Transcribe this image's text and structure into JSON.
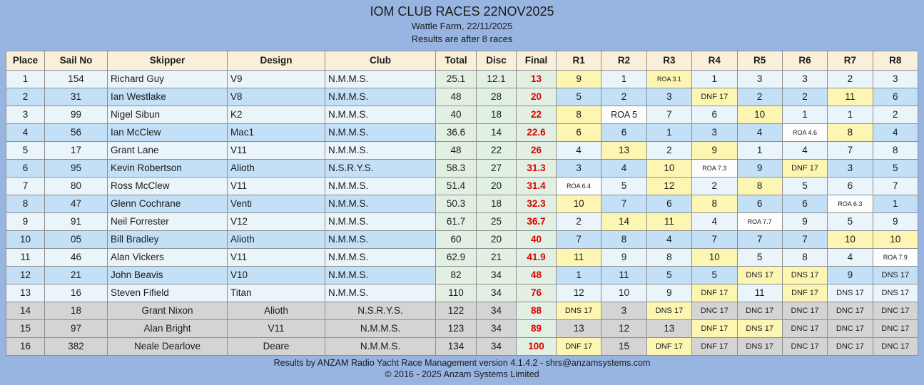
{
  "header": {
    "title": "IOM CLUB RACES 22NOV2025",
    "venue": "Wattle Farm, 22/11/2025",
    "note": "Results are after 8 races"
  },
  "colors": {
    "page_bg": "#98B5E2",
    "header_bg": "#FAEFD8",
    "row_light": "#EAF4FB",
    "row_blue": "#C3E0F6",
    "row_gray": "#D4D4D4",
    "discard_yellow": "#FCF6B2",
    "totals_green": "#E2F0E3",
    "roa_white": "#FDFDFE",
    "final_red": "#DE0000",
    "border_gray": "#8E8E8E",
    "text": "#1B1B1B"
  },
  "table": {
    "columns": [
      {
        "key": "place",
        "label": "Place"
      },
      {
        "key": "sail_no",
        "label": "Sail No"
      },
      {
        "key": "skipper",
        "label": "Skipper"
      },
      {
        "key": "design",
        "label": "Design"
      },
      {
        "key": "club",
        "label": "Club"
      },
      {
        "key": "total",
        "label": "Total"
      },
      {
        "key": "disc",
        "label": "Disc"
      },
      {
        "key": "final",
        "label": "Final"
      },
      {
        "key": "r1",
        "label": "R1"
      },
      {
        "key": "r2",
        "label": "R2"
      },
      {
        "key": "r3",
        "label": "R3"
      },
      {
        "key": "r4",
        "label": "R4"
      },
      {
        "key": "r5",
        "label": "R5"
      },
      {
        "key": "r6",
        "label": "R6"
      },
      {
        "key": "r7",
        "label": "R7"
      },
      {
        "key": "r8",
        "label": "R8"
      }
    ],
    "rows": [
      {
        "place": "1",
        "sail_no": "154",
        "skipper": "Richard Guy",
        "design": "V9",
        "club": "N.M.M.S.",
        "total": "25.1",
        "disc": "12.1",
        "final": "13",
        "stripe": "light",
        "races": [
          {
            "value": "9",
            "discard": true
          },
          {
            "value": "1"
          },
          {
            "value": "ROA 3.1",
            "discard": true,
            "type": "roa"
          },
          {
            "value": "1"
          },
          {
            "value": "3"
          },
          {
            "value": "3"
          },
          {
            "value": "2"
          },
          {
            "value": "3"
          }
        ]
      },
      {
        "place": "2",
        "sail_no": "31",
        "skipper": "Ian Westlake",
        "design": "V8",
        "club": "N.M.M.S.",
        "total": "48",
        "disc": "28",
        "final": "20",
        "stripe": "blue",
        "races": [
          {
            "value": "5"
          },
          {
            "value": "2"
          },
          {
            "value": "3"
          },
          {
            "value": "DNF 17",
            "discard": true,
            "type": "code"
          },
          {
            "value": "2"
          },
          {
            "value": "2"
          },
          {
            "value": "11",
            "discard": true
          },
          {
            "value": "6"
          }
        ]
      },
      {
        "place": "3",
        "sail_no": "99",
        "skipper": "Nigel Sibun",
        "design": "K2",
        "club": "N.M.M.S.",
        "total": "40",
        "disc": "18",
        "final": "22",
        "stripe": "light",
        "races": [
          {
            "value": "8",
            "discard": true
          },
          {
            "value": "ROA 5",
            "type": "roa"
          },
          {
            "value": "7"
          },
          {
            "value": "6"
          },
          {
            "value": "10",
            "discard": true
          },
          {
            "value": "1"
          },
          {
            "value": "1"
          },
          {
            "value": "2"
          }
        ]
      },
      {
        "place": "4",
        "sail_no": "56",
        "skipper": "Ian McClew",
        "design": "Mac1",
        "club": "N.M.M.S.",
        "total": "36.6",
        "disc": "14",
        "final": "22.6",
        "stripe": "blue",
        "races": [
          {
            "value": "6",
            "discard": true
          },
          {
            "value": "6"
          },
          {
            "value": "1"
          },
          {
            "value": "3"
          },
          {
            "value": "4"
          },
          {
            "value": "ROA 4.6",
            "type": "roa"
          },
          {
            "value": "8",
            "discard": true
          },
          {
            "value": "4"
          }
        ]
      },
      {
        "place": "5",
        "sail_no": "17",
        "skipper": "Grant Lane",
        "design": "V11",
        "club": "N.M.M.S.",
        "total": "48",
        "disc": "22",
        "final": "26",
        "stripe": "light",
        "races": [
          {
            "value": "4"
          },
          {
            "value": "13",
            "discard": true
          },
          {
            "value": "2"
          },
          {
            "value": "9",
            "discard": true
          },
          {
            "value": "1"
          },
          {
            "value": "4"
          },
          {
            "value": "7"
          },
          {
            "value": "8"
          }
        ]
      },
      {
        "place": "6",
        "sail_no": "95",
        "skipper": "Kevin Robertson",
        "design": "Alioth",
        "club": "N.S.R.Y.S.",
        "total": "58.3",
        "disc": "27",
        "final": "31.3",
        "stripe": "blue",
        "races": [
          {
            "value": "3"
          },
          {
            "value": "4"
          },
          {
            "value": "10",
            "discard": true
          },
          {
            "value": "ROA 7.3",
            "type": "roa"
          },
          {
            "value": "9"
          },
          {
            "value": "DNF 17",
            "discard": true,
            "type": "code"
          },
          {
            "value": "3"
          },
          {
            "value": "5"
          }
        ]
      },
      {
        "place": "7",
        "sail_no": "80",
        "skipper": "Ross McClew",
        "design": "V11",
        "club": "N.M.M.S.",
        "total": "51.4",
        "disc": "20",
        "final": "31.4",
        "stripe": "light",
        "races": [
          {
            "value": "ROA 6.4",
            "type": "roa"
          },
          {
            "value": "5"
          },
          {
            "value": "12",
            "discard": true
          },
          {
            "value": "2"
          },
          {
            "value": "8",
            "discard": true
          },
          {
            "value": "5"
          },
          {
            "value": "6"
          },
          {
            "value": "7"
          }
        ]
      },
      {
        "place": "8",
        "sail_no": "47",
        "skipper": "Glenn Cochrane",
        "design": "Venti",
        "club": "N.M.M.S.",
        "total": "50.3",
        "disc": "18",
        "final": "32.3",
        "stripe": "blue",
        "races": [
          {
            "value": "10",
            "discard": true
          },
          {
            "value": "7"
          },
          {
            "value": "6"
          },
          {
            "value": "8",
            "discard": true
          },
          {
            "value": "6"
          },
          {
            "value": "6"
          },
          {
            "value": "ROA 6.3",
            "type": "roa"
          },
          {
            "value": "1"
          }
        ]
      },
      {
        "place": "9",
        "sail_no": "91",
        "skipper": "Neil Forrester",
        "design": "V12",
        "club": "N.M.M.S.",
        "total": "61.7",
        "disc": "25",
        "final": "36.7",
        "stripe": "light",
        "races": [
          {
            "value": "2"
          },
          {
            "value": "14",
            "discard": true
          },
          {
            "value": "11",
            "discard": true
          },
          {
            "value": "4"
          },
          {
            "value": "ROA 7.7",
            "type": "roa"
          },
          {
            "value": "9"
          },
          {
            "value": "5"
          },
          {
            "value": "9"
          }
        ]
      },
      {
        "place": "10",
        "sail_no": "05",
        "skipper": "Bill Bradley",
        "design": "Alioth",
        "club": "N.M.M.S.",
        "total": "60",
        "disc": "20",
        "final": "40",
        "stripe": "blue",
        "races": [
          {
            "value": "7"
          },
          {
            "value": "8"
          },
          {
            "value": "4"
          },
          {
            "value": "7"
          },
          {
            "value": "7"
          },
          {
            "value": "7"
          },
          {
            "value": "10",
            "discard": true
          },
          {
            "value": "10",
            "discard": true
          }
        ]
      },
      {
        "place": "11",
        "sail_no": "46",
        "skipper": "Alan Vickers",
        "design": "V11",
        "club": "N.M.M.S.",
        "total": "62.9",
        "disc": "21",
        "final": "41.9",
        "stripe": "light",
        "races": [
          {
            "value": "11",
            "discard": true
          },
          {
            "value": "9"
          },
          {
            "value": "8"
          },
          {
            "value": "10",
            "discard": true
          },
          {
            "value": "5"
          },
          {
            "value": "8"
          },
          {
            "value": "4"
          },
          {
            "value": "ROA 7.9",
            "type": "roa"
          }
        ]
      },
      {
        "place": "12",
        "sail_no": "21",
        "skipper": "John Beavis",
        "design": "V10",
        "club": "N.M.M.S.",
        "total": "82",
        "disc": "34",
        "final": "48",
        "stripe": "blue",
        "races": [
          {
            "value": "1"
          },
          {
            "value": "11"
          },
          {
            "value": "5"
          },
          {
            "value": "5"
          },
          {
            "value": "DNS 17",
            "discard": true,
            "type": "code"
          },
          {
            "value": "DNS 17",
            "discard": true,
            "type": "code"
          },
          {
            "value": "9"
          },
          {
            "value": "DNS 17",
            "type": "code"
          }
        ]
      },
      {
        "place": "13",
        "sail_no": "16",
        "skipper": "Steven Fifield",
        "design": "Titan",
        "club": "N.M.M.S.",
        "total": "110",
        "disc": "34",
        "final": "76",
        "stripe": "light",
        "races": [
          {
            "value": "12"
          },
          {
            "value": "10"
          },
          {
            "value": "9"
          },
          {
            "value": "DNF 17",
            "discard": true,
            "type": "code"
          },
          {
            "value": "11"
          },
          {
            "value": "DNF 17",
            "discard": true,
            "type": "code"
          },
          {
            "value": "DNS 17",
            "type": "code"
          },
          {
            "value": "DNS 17",
            "type": "code"
          }
        ]
      },
      {
        "place": "14",
        "sail_no": "18",
        "skipper": "Grant Nixon",
        "design": "Alioth",
        "club": "N.S.R.Y.S.",
        "total": "122",
        "disc": "34",
        "final": "88",
        "stripe": "gray",
        "races": [
          {
            "value": "DNS 17",
            "discard": true,
            "type": "code"
          },
          {
            "value": "3"
          },
          {
            "value": "DNS 17",
            "discard": true,
            "type": "code"
          },
          {
            "value": "DNC 17",
            "type": "code"
          },
          {
            "value": "DNC 17",
            "type": "code"
          },
          {
            "value": "DNC 17",
            "type": "code"
          },
          {
            "value": "DNC 17",
            "type": "code"
          },
          {
            "value": "DNC 17",
            "type": "code"
          }
        ]
      },
      {
        "place": "15",
        "sail_no": "97",
        "skipper": "Alan Bright",
        "design": "V11",
        "club": "N.M.M.S.",
        "total": "123",
        "disc": "34",
        "final": "89",
        "stripe": "gray",
        "races": [
          {
            "value": "13"
          },
          {
            "value": "12"
          },
          {
            "value": "13"
          },
          {
            "value": "DNF 17",
            "discard": true,
            "type": "code"
          },
          {
            "value": "DNS 17",
            "discard": true,
            "type": "code"
          },
          {
            "value": "DNC 17",
            "type": "code"
          },
          {
            "value": "DNC 17",
            "type": "code"
          },
          {
            "value": "DNC 17",
            "type": "code"
          }
        ]
      },
      {
        "place": "16",
        "sail_no": "382",
        "skipper": "Neale Dearlove",
        "design": "Deare",
        "club": "N.M.M.S.",
        "total": "134",
        "disc": "34",
        "final": "100",
        "stripe": "gray",
        "races": [
          {
            "value": "DNF 17",
            "discard": true,
            "type": "code"
          },
          {
            "value": "15"
          },
          {
            "value": "DNF 17",
            "discard": true,
            "type": "code"
          },
          {
            "value": "DNF 17",
            "type": "code"
          },
          {
            "value": "DNS 17",
            "type": "code"
          },
          {
            "value": "DNC 17",
            "type": "code"
          },
          {
            "value": "DNC 17",
            "type": "code"
          },
          {
            "value": "DNC 17",
            "type": "code"
          }
        ]
      }
    ]
  },
  "footer": {
    "line1": "Results by ANZAM Radio Yacht Race Management version 4.1.4.2 - shrs@anzamsystems.com",
    "line2": "© 2016 - 2025 Anzam Systems Limited"
  }
}
